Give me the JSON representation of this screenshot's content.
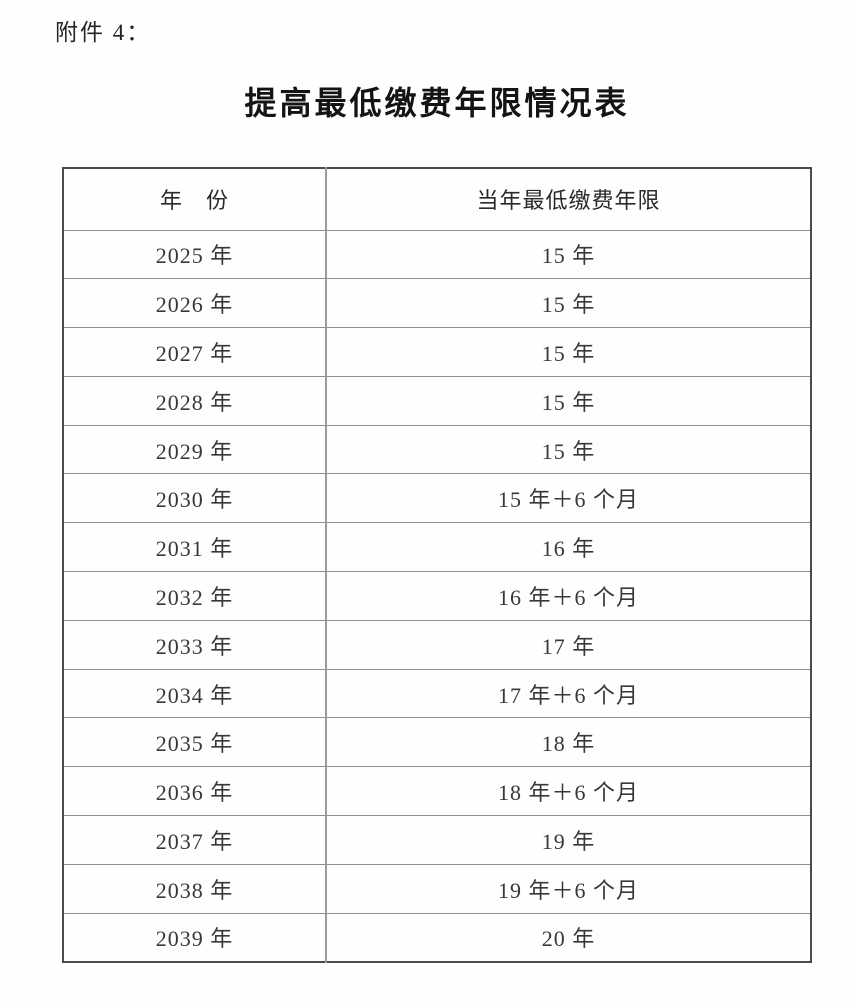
{
  "page": {
    "attachment_label": "附件 4：",
    "title": "提高最低缴费年限情况表"
  },
  "table": {
    "headers": [
      "年　份",
      "当年最低缴费年限"
    ],
    "rows": [
      {
        "year": "2025 年",
        "min_years": "15 年"
      },
      {
        "year": "2026 年",
        "min_years": "15 年"
      },
      {
        "year": "2027 年",
        "min_years": "15 年"
      },
      {
        "year": "2028 年",
        "min_years": "15 年"
      },
      {
        "year": "2029 年",
        "min_years": "15 年"
      },
      {
        "year": "2030 年",
        "min_years": "15 年＋6 个月"
      },
      {
        "year": "2031 年",
        "min_years": "16 年"
      },
      {
        "year": "2032 年",
        "min_years": "16 年＋6 个月"
      },
      {
        "year": "2033 年",
        "min_years": "17 年"
      },
      {
        "year": "2034 年",
        "min_years": "17 年＋6 个月"
      },
      {
        "year": "2035 年",
        "min_years": "18 年"
      },
      {
        "year": "2036 年",
        "min_years": "18 年＋6 个月"
      },
      {
        "year": "2037 年",
        "min_years": "19 年"
      },
      {
        "year": "2038 年",
        "min_years": "19 年＋6 个月"
      },
      {
        "year": "2039 年",
        "min_years": "20 年"
      }
    ]
  },
  "colors": {
    "page_background": "#fefefe",
    "outer_border": "#4a4a4a",
    "inner_border": "#8f8f8f",
    "title_text": "#141414",
    "body_text": "#383838"
  }
}
